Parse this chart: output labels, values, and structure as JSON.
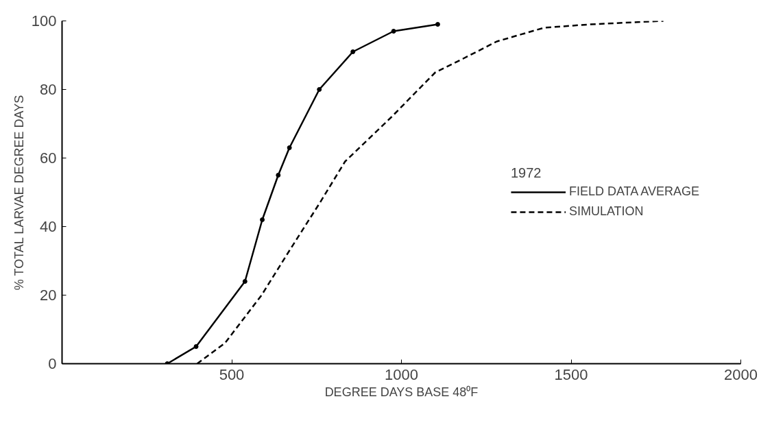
{
  "chart_data": {
    "type": "line",
    "xlabel": "DEGREE DAYS BASE 48⁰F",
    "ylabel": "% TOTAL LARVAE DEGREE DAYS",
    "legend_title": "1972",
    "legend": "right",
    "grid": false,
    "xlim": [
      0,
      2000
    ],
    "xticks": [
      500,
      1000,
      1500,
      2000
    ],
    "ylim": [
      0,
      100
    ],
    "yticks": [
      0,
      20,
      40,
      60,
      80,
      100
    ],
    "series": [
      {
        "name": "FIELD DATA AVERAGE",
        "color": "#000000",
        "marker": "circle",
        "line_style": "solid",
        "x": [
          310,
          395,
          539,
          590,
          637,
          670,
          758,
          857,
          977,
          1107
        ],
        "values": [
          0,
          5,
          24,
          42,
          55,
          63,
          80,
          91,
          97,
          99
        ]
      },
      {
        "name": "SIMULATION",
        "color": "#000000",
        "marker": "none",
        "line_style": "dashed",
        "x": [
          398,
          480,
          588,
          670,
          760,
          834,
          971,
          1100,
          1182,
          1281,
          1420,
          1557,
          1772
        ],
        "values": [
          0,
          6,
          20,
          33,
          47,
          59,
          72,
          85,
          89,
          94,
          98,
          99,
          100
        ]
      }
    ]
  }
}
